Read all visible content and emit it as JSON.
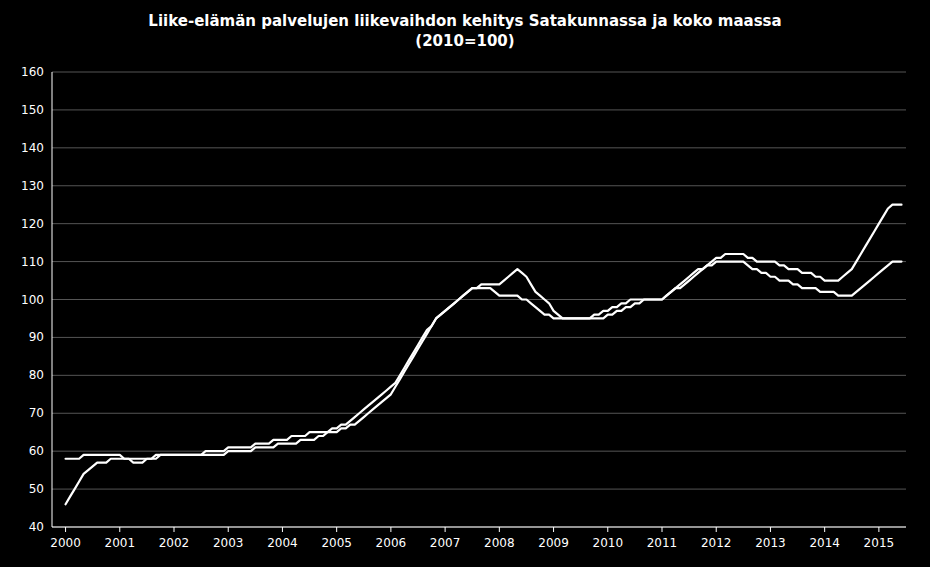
{
  "chart_data": {
    "type": "line",
    "title": "Liike-elämän palvelujen liikevaihdon kehitys Satakunnassa ja koko maassa",
    "subtitle": "(2010=100)",
    "x": [
      2000.0,
      2000.083,
      2000.167,
      2000.25,
      2000.333,
      2000.417,
      2000.5,
      2000.583,
      2000.667,
      2000.75,
      2000.833,
      2000.917,
      2001.0,
      2001.083,
      2001.167,
      2001.25,
      2001.333,
      2001.417,
      2001.5,
      2001.583,
      2001.667,
      2001.75,
      2001.833,
      2001.917,
      2002.0,
      2002.083,
      2002.167,
      2002.25,
      2002.333,
      2002.417,
      2002.5,
      2002.583,
      2002.667,
      2002.75,
      2002.833,
      2002.917,
      2003.0,
      2003.083,
      2003.167,
      2003.25,
      2003.333,
      2003.417,
      2003.5,
      2003.583,
      2003.667,
      2003.75,
      2003.833,
      2003.917,
      2004.0,
      2004.083,
      2004.167,
      2004.25,
      2004.333,
      2004.417,
      2004.5,
      2004.583,
      2004.667,
      2004.75,
      2004.833,
      2004.917,
      2005.0,
      2005.083,
      2005.167,
      2005.25,
      2005.333,
      2005.417,
      2005.5,
      2005.583,
      2005.667,
      2005.75,
      2005.833,
      2005.917,
      2006.0,
      2006.083,
      2006.167,
      2006.25,
      2006.333,
      2006.417,
      2006.5,
      2006.583,
      2006.667,
      2006.75,
      2006.833,
      2006.917,
      2007.0,
      2007.083,
      2007.167,
      2007.25,
      2007.333,
      2007.417,
      2007.5,
      2007.583,
      2007.667,
      2007.75,
      2007.833,
      2007.917,
      2008.0,
      2008.083,
      2008.167,
      2008.25,
      2008.333,
      2008.417,
      2008.5,
      2008.583,
      2008.667,
      2008.75,
      2008.833,
      2008.917,
      2009.0,
      2009.083,
      2009.167,
      2009.25,
      2009.333,
      2009.417,
      2009.5,
      2009.583,
      2009.667,
      2009.75,
      2009.833,
      2009.917,
      2010.0,
      2010.083,
      2010.167,
      2010.25,
      2010.333,
      2010.417,
      2010.5,
      2010.583,
      2010.667,
      2010.75,
      2010.833,
      2010.917,
      2011.0,
      2011.083,
      2011.167,
      2011.25,
      2011.333,
      2011.417,
      2011.5,
      2011.583,
      2011.667,
      2011.75,
      2011.833,
      2011.917,
      2012.0,
      2012.083,
      2012.167,
      2012.25,
      2012.333,
      2012.417,
      2012.5,
      2012.583,
      2012.667,
      2012.75,
      2012.833,
      2012.917,
      2013.0,
      2013.083,
      2013.167,
      2013.25,
      2013.333,
      2013.417,
      2013.5,
      2013.583,
      2013.667,
      2013.75,
      2013.833,
      2013.917,
      2014.0,
      2014.083,
      2014.167,
      2014.25,
      2014.333,
      2014.417,
      2014.5,
      2014.583,
      2014.667,
      2014.75,
      2014.833,
      2014.917,
      2015.0,
      2015.083,
      2015.167,
      2015.25,
      2015.333,
      2015.417
    ],
    "series": [
      {
        "color": "#ffffff",
        "values": [
          46,
          48,
          50,
          52,
          54,
          55,
          56,
          57,
          57,
          57,
          58,
          58,
          58,
          58,
          58,
          57,
          57,
          57,
          58,
          58,
          59,
          59,
          59,
          59,
          59,
          59,
          59,
          59,
          59,
          59,
          59,
          60,
          60,
          60,
          60,
          60,
          61,
          61,
          61,
          61,
          61,
          61,
          62,
          62,
          62,
          62,
          63,
          63,
          63,
          63,
          64,
          64,
          64,
          64,
          65,
          65,
          65,
          65,
          65,
          66,
          66,
          67,
          67,
          68,
          69,
          70,
          71,
          72,
          73,
          74,
          75,
          76,
          77,
          78,
          80,
          82,
          84,
          86,
          88,
          90,
          92,
          93,
          95,
          96,
          97,
          98,
          99,
          100,
          101,
          102,
          103,
          103,
          104,
          104,
          104,
          104,
          104,
          105,
          106,
          107,
          108,
          107,
          106,
          104,
          102,
          101,
          100,
          99,
          97,
          96,
          95,
          95,
          95,
          95,
          95,
          95,
          95,
          95,
          95,
          95,
          96,
          96,
          97,
          97,
          98,
          98,
          99,
          99,
          100,
          100,
          100,
          100,
          100,
          101,
          102,
          103,
          104,
          105,
          106,
          107,
          108,
          108,
          109,
          109,
          110,
          110,
          110,
          110,
          110,
          110,
          110,
          109,
          108,
          108,
          107,
          107,
          106,
          106,
          105,
          105,
          105,
          104,
          104,
          103,
          103,
          103,
          103,
          102,
          102,
          102,
          102,
          101,
          101,
          101,
          101,
          102,
          103,
          104,
          105,
          106,
          107,
          108,
          109,
          110,
          110,
          110
        ]
      },
      {
        "color": "#ffffff",
        "values": [
          58,
          58,
          58,
          58,
          59,
          59,
          59,
          59,
          59,
          59,
          59,
          59,
          59,
          58,
          58,
          58,
          58,
          58,
          58,
          58,
          58,
          59,
          59,
          59,
          59,
          59,
          59,
          59,
          59,
          59,
          59,
          59,
          59,
          59,
          59,
          59,
          60,
          60,
          60,
          60,
          60,
          60,
          61,
          61,
          61,
          61,
          61,
          62,
          62,
          62,
          62,
          62,
          63,
          63,
          63,
          63,
          64,
          64,
          65,
          65,
          65,
          66,
          66,
          67,
          67,
          68,
          69,
          70,
          71,
          72,
          73,
          74,
          75,
          77,
          79,
          81,
          83,
          85,
          87,
          89,
          91,
          93,
          95,
          96,
          97,
          98,
          99,
          100,
          101,
          102,
          103,
          103,
          103,
          103,
          103,
          102,
          101,
          101,
          101,
          101,
          101,
          100,
          100,
          99,
          98,
          97,
          96,
          96,
          95,
          95,
          95,
          95,
          95,
          95,
          95,
          95,
          95,
          96,
          96,
          97,
          97,
          98,
          98,
          99,
          99,
          100,
          100,
          100,
          100,
          100,
          100,
          100,
          100,
          101,
          102,
          103,
          103,
          104,
          105,
          106,
          107,
          108,
          109,
          110,
          111,
          111,
          112,
          112,
          112,
          112,
          112,
          111,
          111,
          110,
          110,
          110,
          110,
          110,
          109,
          109,
          108,
          108,
          108,
          107,
          107,
          107,
          106,
          106,
          105,
          105,
          105,
          105,
          106,
          107,
          108,
          110,
          112,
          114,
          116,
          118,
          120,
          122,
          124,
          125,
          125,
          125
        ]
      }
    ],
    "xlim": [
      1999.75,
      2015.5
    ],
    "xticks": [
      2000,
      2001,
      2002,
      2003,
      2004,
      2005,
      2006,
      2007,
      2008,
      2009,
      2010,
      2011,
      2012,
      2013,
      2014,
      2015
    ],
    "ylim": [
      40,
      160
    ],
    "yticks": [
      40,
      50,
      60,
      70,
      80,
      90,
      100,
      110,
      120,
      130,
      140,
      150,
      160
    ],
    "grid": true
  }
}
